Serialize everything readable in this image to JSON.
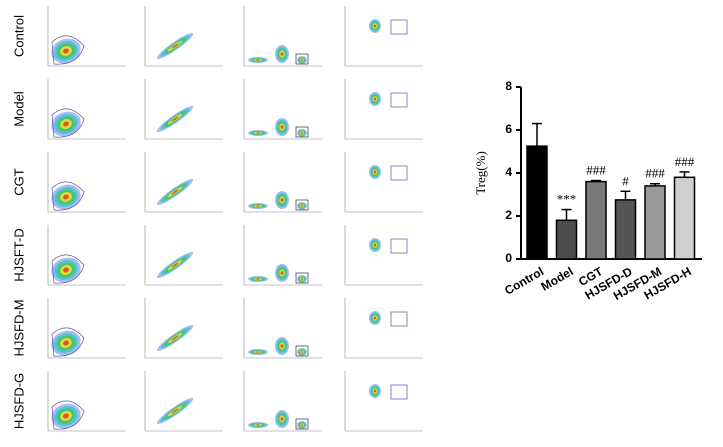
{
  "row_labels": [
    "Control",
    "Model",
    "CGT",
    "HJSFT-D",
    "HJSFD-M",
    "HJSFD-G"
  ],
  "chart_data": {
    "type": "bar",
    "ylabel": "Treg(%)",
    "categories": [
      "Control",
      "Model",
      "CGT",
      "HJSFD-D",
      "HJSFD-M",
      "HJSFD-H"
    ],
    "values": [
      5.25,
      1.8,
      3.6,
      2.75,
      3.4,
      3.8
    ],
    "errors": [
      1.05,
      0.5,
      0.05,
      0.4,
      0.1,
      0.25
    ],
    "annotations": [
      null,
      "***",
      "###",
      "#",
      "###",
      "###"
    ],
    "colors": [
      "#000000",
      "#4d4d4d",
      "#7a7a7a",
      "#555555",
      "#999999",
      "#cfcfcf"
    ],
    "ylim": [
      0,
      8
    ],
    "yticks": [
      0,
      2,
      4,
      6,
      8
    ]
  }
}
